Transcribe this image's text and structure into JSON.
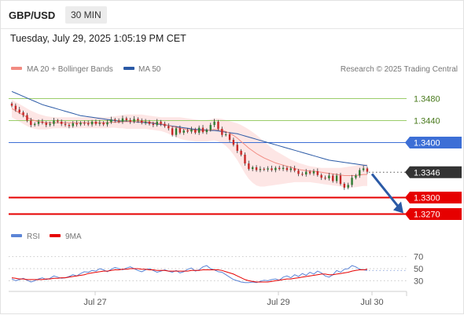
{
  "header": {
    "symbol": "GBP/USD",
    "timeframe": "30 MIN",
    "datetime": "Tuesday, July 29, 2025 1:05:19 PM CET"
  },
  "colors": {
    "ma20": "#f28b82",
    "bollinger_fill": "#fde0df",
    "ma50": "#2b5aa6",
    "candle_up": "#2e7d32",
    "candle_down": "#c62828",
    "resistance_line": "#9acd6a",
    "pivot_line": "#3d6fd6",
    "support_line": "#e60000",
    "rsi": "#5c85d6",
    "rsi_ma": "#e60000",
    "arrow": "#2b5aa6",
    "current_price_tag": "#333333"
  },
  "chart_data": [
    {
      "type": "candlestick",
      "legend": [
        "MA 20 + Bollinger Bands",
        "MA 50"
      ],
      "copyright": "Research © 2025 Trading Central",
      "x_tick_labels": [
        "Jul 27",
        "Jul 29",
        "Jul 30"
      ],
      "ylim": [
        1.3255,
        1.3505
      ],
      "levels": [
        {
          "value": 1.348,
          "label": "1.3480",
          "kind": "resistance"
        },
        {
          "value": 1.344,
          "label": "1.3440",
          "kind": "resistance"
        },
        {
          "value": 1.34,
          "label": "1.3400",
          "kind": "pivot"
        },
        {
          "value": 1.3346,
          "label": "1.3346",
          "kind": "current"
        },
        {
          "value": 1.33,
          "label": "1.3300",
          "kind": "support"
        },
        {
          "value": 1.327,
          "label": "1.3270",
          "kind": "support"
        }
      ],
      "closes": [
        1.3467,
        1.346,
        1.3455,
        1.345,
        1.344,
        1.3432,
        1.3434,
        1.3438,
        1.3436,
        1.3432,
        1.3434,
        1.344,
        1.3438,
        1.3434,
        1.3432,
        1.343,
        1.3435,
        1.3433,
        1.3436,
        1.3435,
        1.3433,
        1.3438,
        1.3434,
        1.3436,
        1.3433,
        1.3437,
        1.3442,
        1.344,
        1.3438,
        1.3444,
        1.3441,
        1.3438,
        1.3443,
        1.344,
        1.3436,
        1.3438,
        1.3434,
        1.3432,
        1.3438,
        1.3434,
        1.343,
        1.3426,
        1.3414,
        1.3426,
        1.3418,
        1.3422,
        1.342,
        1.3424,
        1.3418,
        1.3427,
        1.3419,
        1.3423,
        1.3432,
        1.3438,
        1.3425,
        1.3414,
        1.3415,
        1.3405,
        1.3396,
        1.3385,
        1.3378,
        1.3362,
        1.3352,
        1.3355,
        1.335,
        1.3352,
        1.3351,
        1.3353,
        1.335,
        1.3354,
        1.3352,
        1.3354,
        1.335,
        1.3353,
        1.3349,
        1.3343,
        1.3342,
        1.3347,
        1.3344,
        1.3348,
        1.3341,
        1.3336,
        1.3335,
        1.334,
        1.333,
        1.334,
        1.3325,
        1.3318,
        1.3323,
        1.3336,
        1.334,
        1.335,
        1.3353,
        1.3347
      ],
      "ma20": [
        1.3462,
        1.3458,
        1.3454,
        1.345,
        1.3446,
        1.3442,
        1.344,
        1.3438,
        1.3437,
        1.3436,
        1.3436,
        1.3436,
        1.3436,
        1.3436,
        1.3436,
        1.3436,
        1.3436,
        1.3436,
        1.3436,
        1.3436,
        1.3436,
        1.3436,
        1.3436,
        1.3436,
        1.3436,
        1.3436,
        1.3437,
        1.3437,
        1.3437,
        1.3438,
        1.3438,
        1.3438,
        1.3438,
        1.3438,
        1.3438,
        1.3438,
        1.3437,
        1.3436,
        1.3435,
        1.3434,
        1.3433,
        1.3431,
        1.3429,
        1.3428,
        1.3426,
        1.3425,
        1.3424,
        1.3423,
        1.3422,
        1.3422,
        1.3422,
        1.3422,
        1.3423,
        1.3424,
        1.3423,
        1.3422,
        1.342,
        1.3417,
        1.3413,
        1.3408,
        1.3402,
        1.3396,
        1.339,
        1.3385,
        1.338,
        1.3376,
        1.3372,
        1.3369,
        1.3366,
        1.3363,
        1.3361,
        1.3359,
        1.3357,
        1.3355,
        1.3353,
        1.3351,
        1.335,
        1.3349,
        1.3348,
        1.3348,
        1.3347,
        1.3346,
        1.3345,
        1.3344,
        1.3343,
        1.3342,
        1.3341,
        1.334,
        1.334,
        1.334,
        1.334,
        1.3341,
        1.3342,
        1.3342
      ],
      "bollinger_upper": [
        1.3478,
        1.3474,
        1.347,
        1.3466,
        1.3462,
        1.3458,
        1.3455,
        1.3452,
        1.345,
        1.3448,
        1.3447,
        1.3446,
        1.3446,
        1.3446,
        1.3446,
        1.3446,
        1.3446,
        1.3446,
        1.3446,
        1.3446,
        1.3446,
        1.3446,
        1.3446,
        1.3446,
        1.3446,
        1.3446,
        1.3447,
        1.3448,
        1.3449,
        1.345,
        1.3451,
        1.3451,
        1.3451,
        1.3451,
        1.3451,
        1.345,
        1.3449,
        1.3448,
        1.3447,
        1.3446,
        1.3446,
        1.3446,
        1.3446,
        1.3446,
        1.3446,
        1.3445,
        1.3444,
        1.3443,
        1.3442,
        1.3441,
        1.3441,
        1.3441,
        1.3442,
        1.3444,
        1.3444,
        1.3443,
        1.3441,
        1.3439,
        1.3437,
        1.3435,
        1.3432,
        1.3428,
        1.3424,
        1.3419,
        1.3414,
        1.3408,
        1.3402,
        1.3396,
        1.339,
        1.3385,
        1.3381,
        1.3377,
        1.3373,
        1.3369,
        1.3366,
        1.3363,
        1.3361,
        1.3359,
        1.3357,
        1.3356,
        1.3355,
        1.3354,
        1.3354,
        1.3354,
        1.3354,
        1.3354,
        1.3354,
        1.3355,
        1.3356,
        1.3357,
        1.3358,
        1.336,
        1.3361,
        1.3361
      ],
      "bollinger_lower": [
        1.3446,
        1.3442,
        1.3438,
        1.3434,
        1.343,
        1.3427,
        1.3425,
        1.3424,
        1.3424,
        1.3424,
        1.3425,
        1.3426,
        1.3426,
        1.3426,
        1.3426,
        1.3426,
        1.3426,
        1.3426,
        1.3426,
        1.3426,
        1.3426,
        1.3426,
        1.3426,
        1.3426,
        1.3426,
        1.3426,
        1.3427,
        1.3427,
        1.3426,
        1.3426,
        1.3425,
        1.3425,
        1.3425,
        1.3425,
        1.3425,
        1.3425,
        1.3424,
        1.3423,
        1.3422,
        1.3421,
        1.3419,
        1.3416,
        1.3413,
        1.341,
        1.3407,
        1.3405,
        1.3404,
        1.3403,
        1.3402,
        1.3402,
        1.3402,
        1.3402,
        1.3403,
        1.3404,
        1.3402,
        1.3399,
        1.3394,
        1.3387,
        1.3378,
        1.3368,
        1.3356,
        1.3344,
        1.3334,
        1.3327,
        1.3322,
        1.332,
        1.332,
        1.3321,
        1.3322,
        1.3323,
        1.3324,
        1.3325,
        1.3326,
        1.3327,
        1.3328,
        1.3328,
        1.3328,
        1.3328,
        1.3328,
        1.3327,
        1.3326,
        1.3325,
        1.3324,
        1.3323,
        1.3322,
        1.3321,
        1.332,
        1.3319,
        1.3318,
        1.3318,
        1.3319,
        1.332,
        1.3321,
        1.3321
      ],
      "ma50": [
        1.3493,
        1.349,
        1.3487,
        1.3484,
        1.3481,
        1.3478,
        1.3475,
        1.3472,
        1.3469,
        1.3467,
        1.3465,
        1.3463,
        1.3461,
        1.3459,
        1.3457,
        1.3455,
        1.3453,
        1.3451,
        1.3449,
        1.3448,
        1.3447,
        1.3446,
        1.3445,
        1.3444,
        1.3443,
        1.3442,
        1.3441,
        1.344,
        1.3439,
        1.3439,
        1.3439,
        1.3438,
        1.3438,
        1.3437,
        1.3437,
        1.3436,
        1.3436,
        1.3435,
        1.3434,
        1.3433,
        1.3432,
        1.3431,
        1.343,
        1.3429,
        1.3428,
        1.3427,
        1.3426,
        1.3425,
        1.3424,
        1.3424,
        1.3423,
        1.3423,
        1.3422,
        1.3422,
        1.3421,
        1.342,
        1.3419,
        1.3418,
        1.3417,
        1.3416,
        1.3414,
        1.3412,
        1.341,
        1.3408,
        1.3406,
        1.3404,
        1.3402,
        1.34,
        1.3398,
        1.3396,
        1.3394,
        1.3392,
        1.339,
        1.3388,
        1.3386,
        1.3384,
        1.3382,
        1.338,
        1.3378,
        1.3376,
        1.3374,
        1.3372,
        1.337,
        1.3368,
        1.3367,
        1.3366,
        1.3365,
        1.3364,
        1.3363,
        1.3362,
        1.3361,
        1.336,
        1.3359,
        1.3358
      ],
      "forecast": {
        "from": 1.3343,
        "to": 1.327
      }
    },
    {
      "type": "line",
      "legend": [
        "RSI",
        "9MA"
      ],
      "levels": [
        70,
        50,
        30
      ],
      "ylim": [
        15,
        85
      ],
      "rsi": [
        33,
        30,
        32,
        34,
        31,
        28,
        30,
        33,
        35,
        32,
        34,
        38,
        36,
        34,
        35,
        37,
        40,
        38,
        42,
        45,
        44,
        47,
        46,
        50,
        48,
        45,
        49,
        52,
        50,
        48,
        51,
        53,
        50,
        47,
        45,
        48,
        50,
        47,
        44,
        46,
        48,
        46,
        44,
        47,
        43,
        45,
        49,
        51,
        46,
        48,
        53,
        55,
        50,
        48,
        45,
        44,
        40,
        36,
        32,
        30,
        28,
        27,
        27,
        28,
        27,
        29,
        31,
        30,
        32,
        33,
        31,
        36,
        38,
        35,
        40,
        37,
        42,
        39,
        44,
        41,
        46,
        43,
        38,
        36,
        40,
        47,
        44,
        49,
        50,
        55,
        53,
        49,
        48,
        47
      ],
      "rsi_ma": [
        35,
        34,
        33,
        33,
        32,
        32,
        32,
        32,
        32,
        33,
        33,
        34,
        34,
        35,
        35,
        36,
        37,
        38,
        39,
        40,
        42,
        43,
        44,
        45,
        46,
        46,
        47,
        48,
        48,
        49,
        49,
        50,
        50,
        50,
        49,
        49,
        48,
        48,
        47,
        47,
        47,
        46,
        46,
        46,
        46,
        46,
        46,
        47,
        47,
        47,
        48,
        48,
        48,
        48,
        48,
        47,
        45,
        43,
        41,
        38,
        35,
        32,
        30,
        29,
        28,
        28,
        28,
        28,
        29,
        30,
        31,
        32,
        33,
        33,
        34,
        35,
        36,
        37,
        38,
        39,
        40,
        41,
        41,
        40,
        40,
        41,
        42,
        43,
        44,
        46,
        47,
        48,
        48,
        49
      ]
    }
  ]
}
